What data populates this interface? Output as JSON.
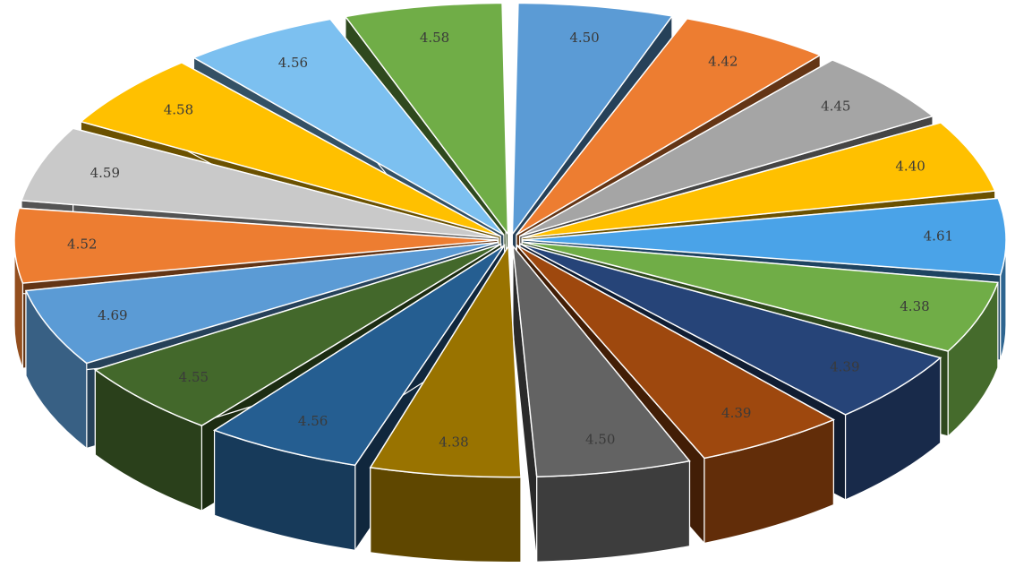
{
  "chart_data": {
    "type": "pie",
    "style": "3d-exploded",
    "legend": "none",
    "values": [
      4.5,
      4.42,
      4.45,
      4.4,
      4.61,
      4.38,
      4.39,
      4.39,
      4.5,
      4.38,
      4.56,
      4.55,
      4.69,
      4.52,
      4.59,
      4.58,
      4.56,
      4.58
    ],
    "labels": [
      "4.50",
      "4.42",
      "4.45",
      "4.40",
      "4.61",
      "4.38",
      "4.39",
      "4.39",
      "4.50",
      "4.38",
      "4.56",
      "4.55",
      "4.69",
      "4.52",
      "4.59",
      "4.58",
      "4.56",
      "4.58"
    ],
    "colors": [
      "#5b9bd5",
      "#ed7d31",
      "#a5a5a5",
      "#ffc000",
      "#4aa3e8",
      "#70ad47",
      "#264478",
      "#9e480e",
      "#636363",
      "#997300",
      "#255e91",
      "#43682b",
      "#5b9bd5",
      "#ed7d31",
      "#c9c9c9",
      "#ffc000",
      "#7cc0f0",
      "#70ad47"
    ]
  }
}
